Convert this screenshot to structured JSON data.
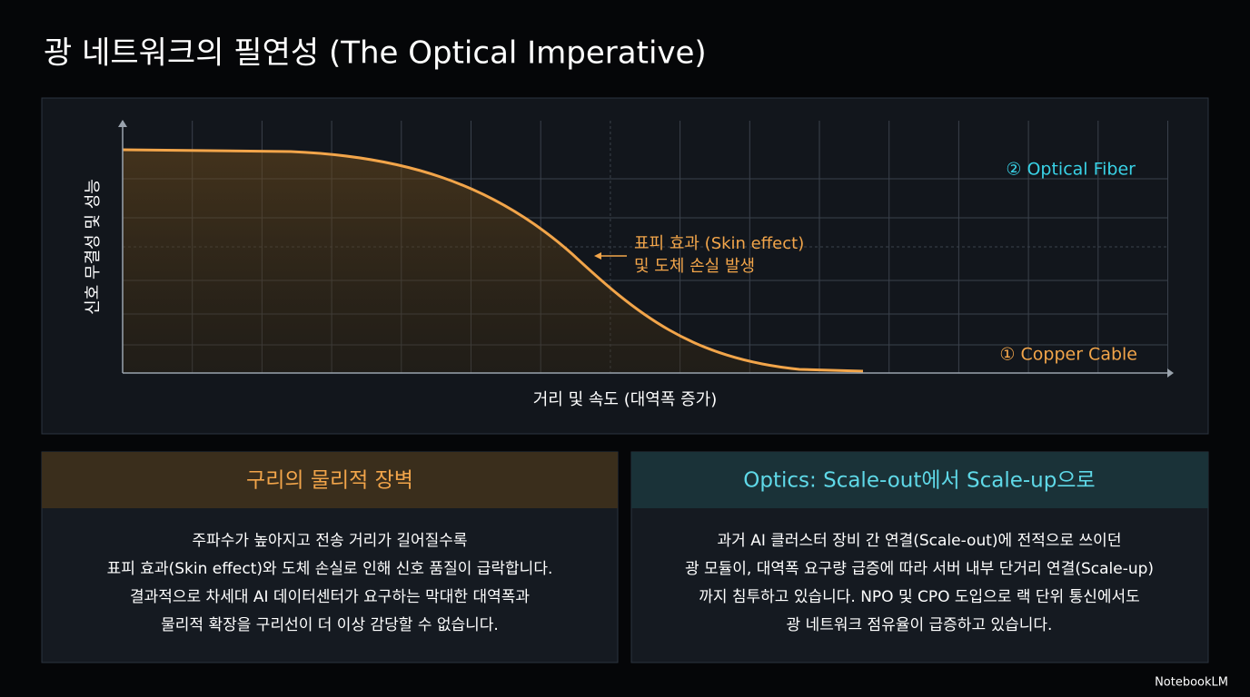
{
  "title": "광 네트워크의 필연성 (The Optical Imperative)",
  "chart": {
    "y_label": "신호 무결성 및 성능",
    "x_label": "거리 및 속도 (대역폭 증가)",
    "annotation": [
      "표피 효과 (Skin effect)",
      "및 도체 손실 발생"
    ],
    "optical_label": "② Optical Fiber",
    "copper_label": "① Copper Cable"
  },
  "cards": [
    {
      "title": "구리의 물리적 장벽",
      "lines": [
        "주파수가 높아지고 전송 거리가 길어질수록",
        "표피 효과(Skin effect)와 도체 손실로 인해 신호 품질이 급락합니다.",
        "결과적으로 차세대 AI 데이터센터가 요구하는 막대한 대역폭과",
        "물리적 확장을 구리선이 더 이상 감당할 수 없습니다."
      ]
    },
    {
      "title": "Optics: Scale-out에서 Scale-up으로",
      "lines": [
        "과거 AI 클러스터 장비 간 연결(Scale-out)에 전적으로 쓰이던",
        "광 모듈이, 대역폭 요구량 급증에 따라 서버 내부 단거리 연결(Scale-up)",
        "까지 침투하고 있습니다. NPO 및 CPO 도입으로 랙 단위 통신에서도",
        "광 네트워크 점유율이 급증하고 있습니다."
      ]
    }
  ],
  "footer": "NotebookLM"
}
